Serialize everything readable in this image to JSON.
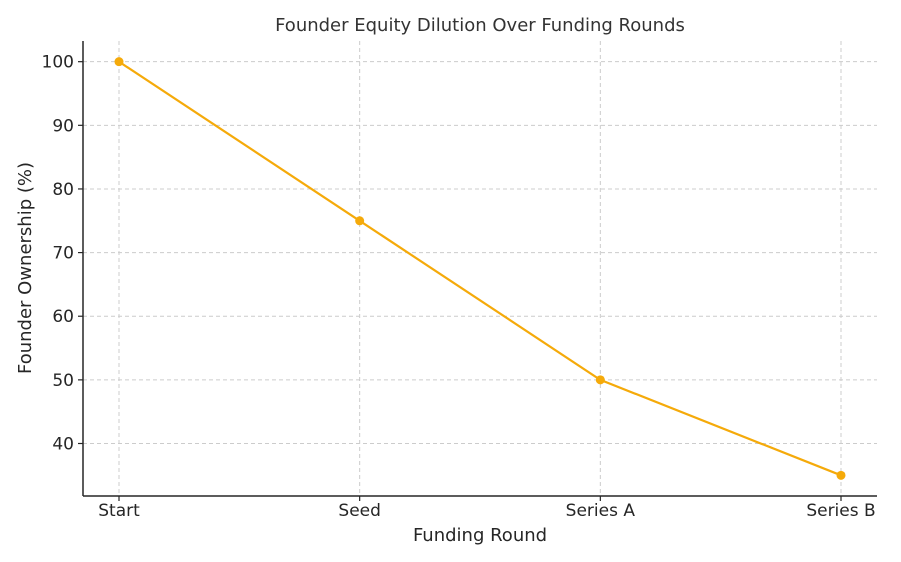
{
  "chart_data": {
    "type": "line",
    "title": "Founder Equity Dilution Over Funding Rounds",
    "xlabel": "Funding Round",
    "ylabel": "Founder Ownership (%)",
    "categories": [
      "Start",
      "Seed",
      "Series A",
      "Series B"
    ],
    "series": [
      {
        "values": [
          100,
          75,
          50,
          35
        ],
        "color": "#f5aa0a"
      }
    ],
    "yticks": [
      40,
      50,
      60,
      70,
      80,
      90,
      100
    ],
    "ylim": [
      31.75,
      103.25
    ],
    "grid": true,
    "marker": "circle"
  }
}
